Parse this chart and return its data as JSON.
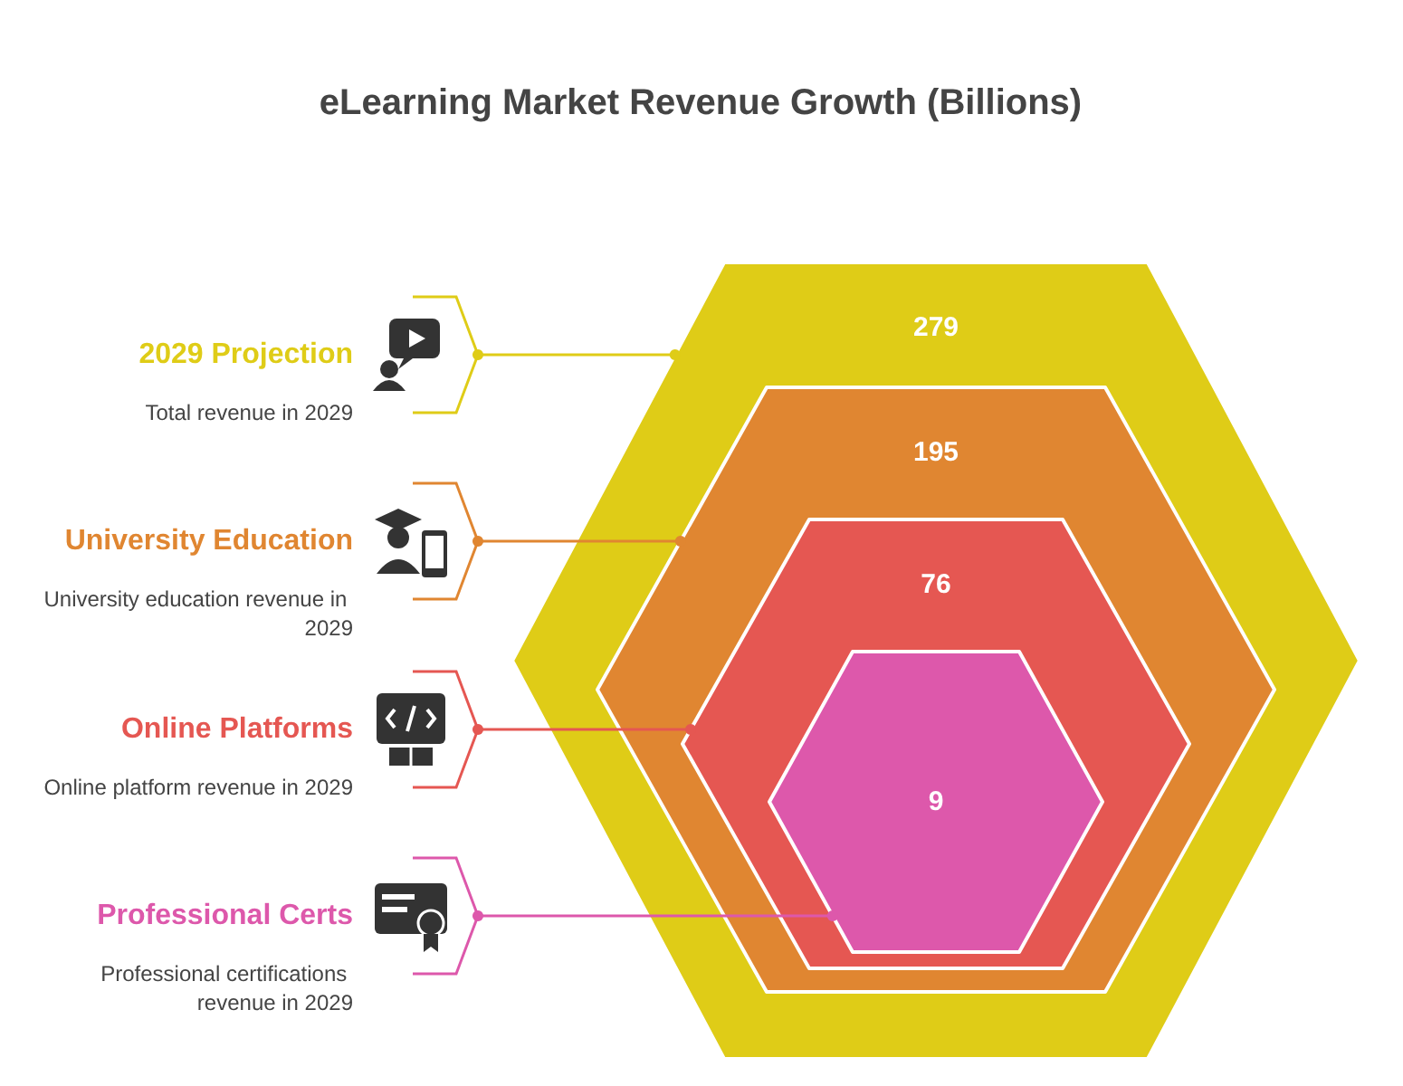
{
  "chart_data": {
    "type": "other",
    "title": "eLearning Market Revenue Growth (Billions)",
    "categories": [
      "2029 Projection",
      "University Education",
      "Online Platforms",
      "Professional Certs"
    ],
    "values": [
      279,
      195,
      76,
      9
    ],
    "colors": [
      "#dfcc17",
      "#e08631",
      "#e55752",
      "#dd58ab"
    ],
    "annotations": [
      "Total revenue in 2029",
      "University education revenue in 2029",
      "Online platform revenue in 2029",
      "Professional certifications revenue in 2029"
    ],
    "data_labels": true
  }
}
